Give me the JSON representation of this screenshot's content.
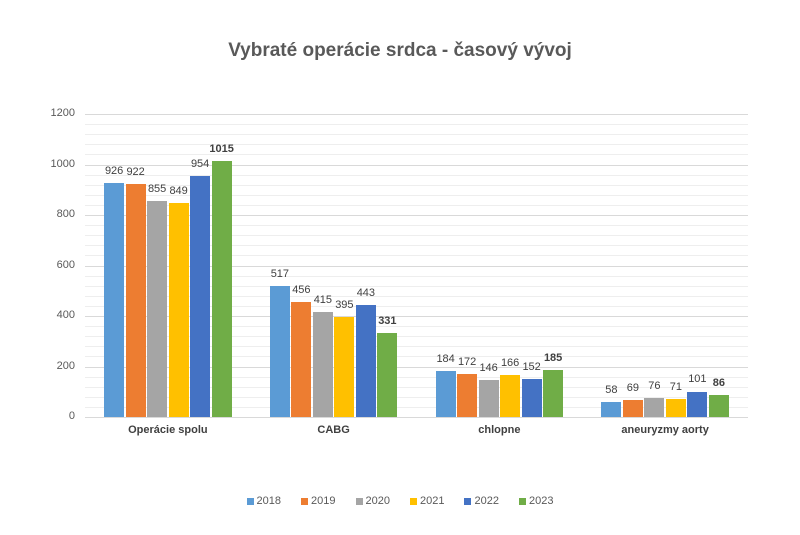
{
  "chart_data": {
    "type": "bar",
    "title": "Vybraté operácie srdca - časový vývoj",
    "xlabel": "",
    "ylabel": "",
    "ylim": [
      0,
      1200
    ],
    "yticks": [
      0,
      200,
      400,
      600,
      800,
      1000,
      1200
    ],
    "grid": true,
    "minor_grid_step": 40,
    "legend_position": "bottom",
    "categories": [
      "Operácie spolu",
      "CABG",
      "chlopne",
      "aneuryzmy aorty"
    ],
    "series": [
      {
        "name": "2018",
        "color": "#5b9bd5",
        "values": [
          926,
          517,
          184,
          58
        ]
      },
      {
        "name": "2019",
        "color": "#ed7d31",
        "values": [
          922,
          456,
          172,
          69
        ]
      },
      {
        "name": "2020",
        "color": "#a5a5a5",
        "values": [
          855,
          415,
          146,
          76
        ]
      },
      {
        "name": "2021",
        "color": "#ffc000",
        "values": [
          849,
          395,
          166,
          71
        ]
      },
      {
        "name": "2022",
        "color": "#4472c4",
        "values": [
          954,
          443,
          152,
          101
        ]
      },
      {
        "name": "2023",
        "color": "#70ad47",
        "values": [
          1015,
          331,
          185,
          86
        ],
        "bold_labels": true
      }
    ]
  }
}
